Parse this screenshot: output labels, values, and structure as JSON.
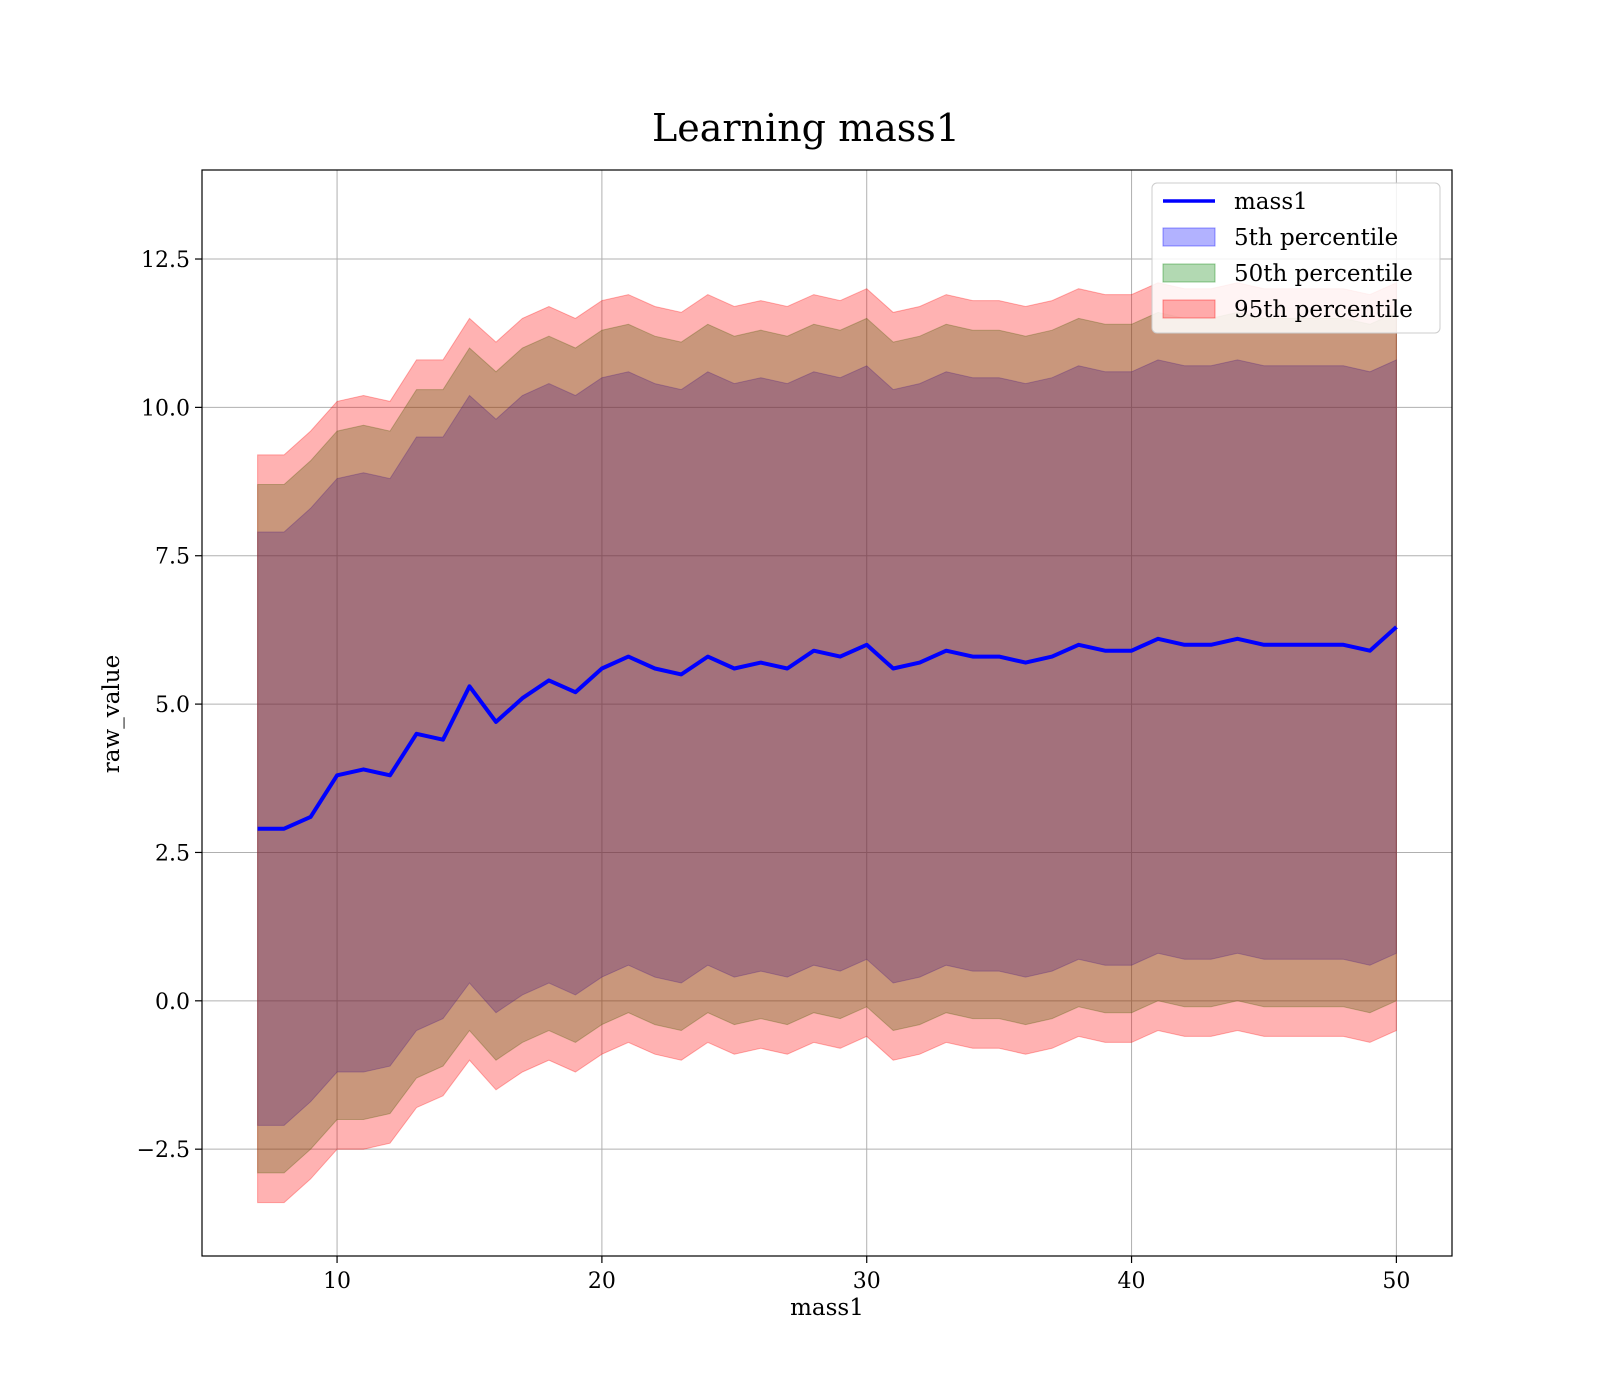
{
  "chart_data": {
    "type": "area",
    "title": "Learning mass1",
    "xlabel": "mass1",
    "ylabel": "raw_value",
    "xlim": [
      4.9,
      52.1
    ],
    "ylim": [
      -4.3,
      14.0
    ],
    "x_ticks": [
      10,
      20,
      30,
      40,
      50
    ],
    "y_ticks": [
      -2.5,
      0.0,
      2.5,
      5.0,
      7.5,
      10.0,
      12.5
    ],
    "x_tick_labels": [
      "10",
      "20",
      "30",
      "40",
      "50"
    ],
    "y_tick_labels": [
      "−2.5",
      "0.0",
      "2.5",
      "5.0",
      "7.5",
      "10.0",
      "12.5"
    ],
    "grid": true,
    "legend_position": "top-right",
    "legend": [
      "mass1",
      "5th percentile",
      "50th percentile",
      "95th percentile"
    ],
    "colors": {
      "line": "#0000ff",
      "band_5": "#0000ff",
      "band_50": "#008000",
      "band_95": "#ff0000"
    },
    "x": [
      7,
      8,
      9,
      10,
      11,
      12,
      13,
      14,
      15,
      16,
      17,
      18,
      19,
      20,
      21,
      22,
      23,
      24,
      25,
      26,
      27,
      28,
      29,
      30,
      31,
      32,
      33,
      34,
      35,
      36,
      37,
      38,
      39,
      40,
      41,
      42,
      43,
      44,
      45,
      46,
      47,
      48,
      49,
      50
    ],
    "series": [
      {
        "name": "mass1",
        "values": [
          2.9,
          2.9,
          3.1,
          3.8,
          3.9,
          3.8,
          4.5,
          4.4,
          5.3,
          4.7,
          5.1,
          5.4,
          5.2,
          5.6,
          5.8,
          5.6,
          5.5,
          5.8,
          5.6,
          5.7,
          5.6,
          5.9,
          5.8,
          6.0,
          5.6,
          5.7,
          5.9,
          5.8,
          5.8,
          5.7,
          5.8,
          6.0,
          5.9,
          5.9,
          6.1,
          6.0,
          6.0,
          6.1,
          6.0,
          6.0,
          6.0,
          6.0,
          5.9,
          6.3
        ]
      },
      {
        "name": "5th percentile",
        "lower": [
          -2.1,
          -2.1,
          -1.7,
          -1.2,
          -1.2,
          -1.1,
          -0.5,
          -0.3,
          0.3,
          -0.2,
          0.1,
          0.3,
          0.1,
          0.4,
          0.6,
          0.4,
          0.3,
          0.6,
          0.4,
          0.5,
          0.4,
          0.6,
          0.5,
          0.7,
          0.3,
          0.4,
          0.6,
          0.5,
          0.5,
          0.4,
          0.5,
          0.7,
          0.6,
          0.6,
          0.8,
          0.7,
          0.7,
          0.8,
          0.7,
          0.7,
          0.7,
          0.7,
          0.6,
          0.8
        ],
        "upper": [
          7.9,
          7.9,
          8.3,
          8.8,
          8.9,
          8.8,
          9.5,
          9.5,
          10.2,
          9.8,
          10.2,
          10.4,
          10.2,
          10.5,
          10.6,
          10.4,
          10.3,
          10.6,
          10.4,
          10.5,
          10.4,
          10.6,
          10.5,
          10.7,
          10.3,
          10.4,
          10.6,
          10.5,
          10.5,
          10.4,
          10.5,
          10.7,
          10.6,
          10.6,
          10.8,
          10.7,
          10.7,
          10.8,
          10.7,
          10.7,
          10.7,
          10.7,
          10.6,
          10.8
        ]
      },
      {
        "name": "50th percentile",
        "lower": [
          -2.9,
          -2.9,
          -2.5,
          -2.0,
          -2.0,
          -1.9,
          -1.3,
          -1.1,
          -0.5,
          -1.0,
          -0.7,
          -0.5,
          -0.7,
          -0.4,
          -0.2,
          -0.4,
          -0.5,
          -0.2,
          -0.4,
          -0.3,
          -0.4,
          -0.2,
          -0.3,
          -0.1,
          -0.5,
          -0.4,
          -0.2,
          -0.3,
          -0.3,
          -0.4,
          -0.3,
          -0.1,
          -0.2,
          -0.2,
          0.0,
          -0.1,
          -0.1,
          0.0,
          -0.1,
          -0.1,
          -0.1,
          -0.1,
          -0.2,
          0.0
        ],
        "upper": [
          8.7,
          8.7,
          9.1,
          9.6,
          9.7,
          9.6,
          10.3,
          10.3,
          11.0,
          10.6,
          11.0,
          11.2,
          11.0,
          11.3,
          11.4,
          11.2,
          11.1,
          11.4,
          11.2,
          11.3,
          11.2,
          11.4,
          11.3,
          11.5,
          11.1,
          11.2,
          11.4,
          11.3,
          11.3,
          11.2,
          11.3,
          11.5,
          11.4,
          11.4,
          11.6,
          11.5,
          11.5,
          11.6,
          11.5,
          11.5,
          11.5,
          11.5,
          11.4,
          11.6
        ]
      },
      {
        "name": "95th percentile",
        "lower": [
          -3.4,
          -3.4,
          -3.0,
          -2.5,
          -2.5,
          -2.4,
          -1.8,
          -1.6,
          -1.0,
          -1.5,
          -1.2,
          -1.0,
          -1.2,
          -0.9,
          -0.7,
          -0.9,
          -1.0,
          -0.7,
          -0.9,
          -0.8,
          -0.9,
          -0.7,
          -0.8,
          -0.6,
          -1.0,
          -0.9,
          -0.7,
          -0.8,
          -0.8,
          -0.9,
          -0.8,
          -0.6,
          -0.7,
          -0.7,
          -0.5,
          -0.6,
          -0.6,
          -0.5,
          -0.6,
          -0.6,
          -0.6,
          -0.6,
          -0.7,
          -0.5
        ],
        "upper": [
          9.2,
          9.2,
          9.6,
          10.1,
          10.2,
          10.1,
          10.8,
          10.8,
          11.5,
          11.1,
          11.5,
          11.7,
          11.5,
          11.8,
          11.9,
          11.7,
          11.6,
          11.9,
          11.7,
          11.8,
          11.7,
          11.9,
          11.8,
          12.0,
          11.6,
          11.7,
          11.9,
          11.8,
          11.8,
          11.7,
          11.8,
          12.0,
          11.9,
          11.9,
          12.1,
          12.0,
          12.0,
          12.1,
          12.0,
          12.0,
          12.0,
          12.0,
          11.9,
          12.1
        ]
      }
    ]
  }
}
